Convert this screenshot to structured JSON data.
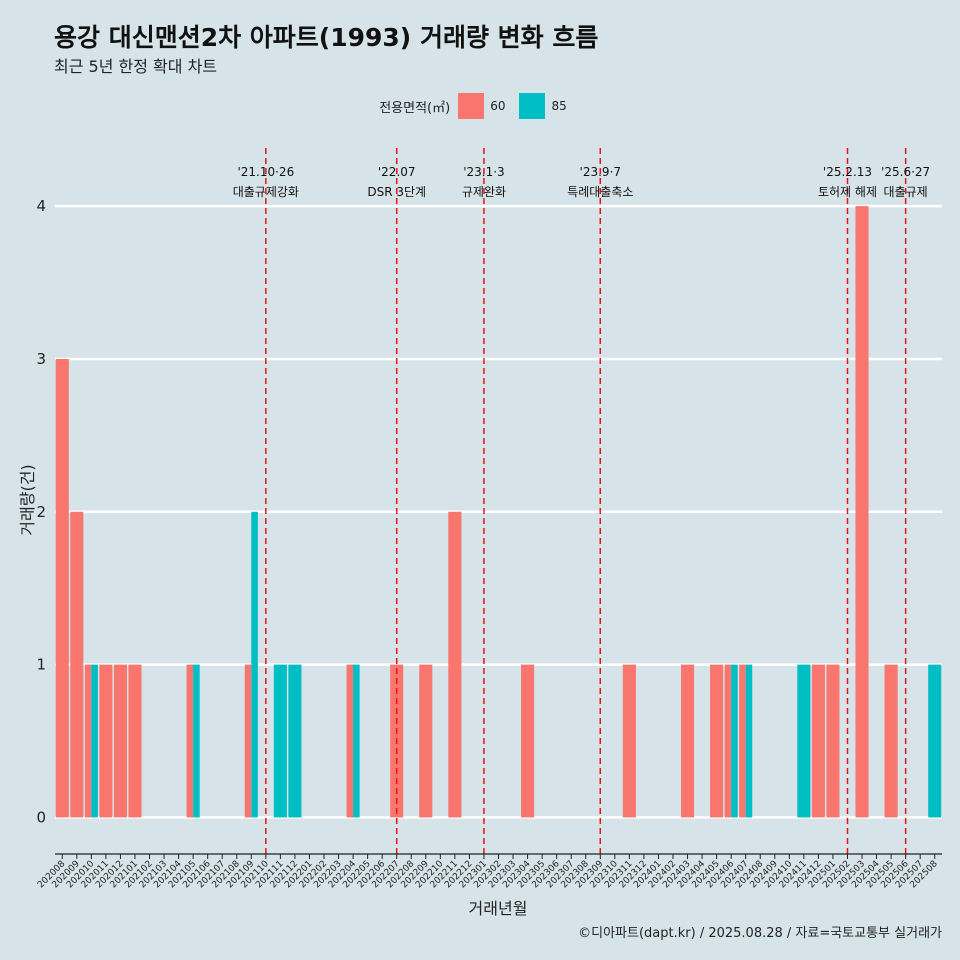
{
  "title": "용강 대신맨션2차 아파트(1993) 거래량 변화 흐름",
  "subtitle": "최근 5년 한정 확대 차트",
  "caption": "©디아파트(dapt.kr) / 2025.08.28 / 자료=국토교통부 실거래가",
  "legend": {
    "title": "전용면적(㎡)",
    "items": [
      {
        "label": "60",
        "color": "#F8766D"
      },
      {
        "label": "85",
        "color": "#00BFC4"
      }
    ]
  },
  "chart_data": {
    "type": "bar",
    "xlabel": "거래년월",
    "ylabel": "거래량(건)",
    "ylim": [
      -0.2,
      4.4
    ],
    "yticks": [
      0,
      1,
      2,
      3,
      4
    ],
    "grid": true,
    "legend_position": "top",
    "categories": [
      "202008",
      "202009",
      "202010",
      "202011",
      "202012",
      "202101",
      "202102",
      "202103",
      "202104",
      "202105",
      "202106",
      "202107",
      "202108",
      "202109",
      "202110",
      "202111",
      "202112",
      "202201",
      "202202",
      "202203",
      "202204",
      "202205",
      "202206",
      "202207",
      "202208",
      "202209",
      "202210",
      "202211",
      "202212",
      "202301",
      "202302",
      "202303",
      "202304",
      "202305",
      "202306",
      "202307",
      "202308",
      "202309",
      "202310",
      "202311",
      "202312",
      "202401",
      "202402",
      "202403",
      "202404",
      "202405",
      "202406",
      "202407",
      "202408",
      "202409",
      "202410",
      "202411",
      "202412",
      "202501",
      "202502",
      "202503",
      "202504",
      "202505",
      "202506",
      "202507",
      "202508"
    ],
    "series": [
      {
        "name": "60",
        "color": "#F8766D",
        "values": [
          3,
          2,
          1,
          1,
          1,
          1,
          0,
          0,
          0,
          1,
          0,
          0,
          0,
          1,
          0,
          0,
          0,
          0,
          0,
          0,
          1,
          0,
          0,
          1,
          0,
          1,
          0,
          2,
          0,
          0,
          0,
          0,
          1,
          0,
          0,
          0,
          0,
          0,
          0,
          1,
          0,
          0,
          0,
          1,
          0,
          1,
          1,
          1,
          0,
          0,
          0,
          0,
          1,
          1,
          0,
          4,
          0,
          1,
          0,
          0,
          0
        ]
      },
      {
        "name": "85",
        "color": "#00BFC4",
        "values": [
          0,
          0,
          1,
          0,
          0,
          0,
          0,
          0,
          0,
          1,
          0,
          0,
          0,
          2,
          0,
          1,
          1,
          0,
          0,
          0,
          1,
          0,
          0,
          0,
          0,
          0,
          0,
          0,
          0,
          0,
          0,
          0,
          0,
          0,
          0,
          0,
          0,
          0,
          0,
          0,
          0,
          0,
          0,
          0,
          0,
          0,
          1,
          1,
          0,
          0,
          0,
          1,
          0,
          0,
          0,
          0,
          0,
          0,
          0,
          0,
          1
        ]
      }
    ],
    "annotations": [
      {
        "at": "202110",
        "line1": "'21.10·26",
        "line2": "대출규제강화"
      },
      {
        "at": "202207",
        "line1": "'22.07",
        "line2": "DSR 3단계"
      },
      {
        "at": "202301",
        "line1": "'23.1·3",
        "line2": "규제완화"
      },
      {
        "at": "202309",
        "line1": "'23.9·7",
        "line2": "특례대출축소"
      },
      {
        "at": "202502",
        "line1": "'25.2.13",
        "line2": "토허제 해제"
      },
      {
        "at": "202506",
        "line1": "'25.6·27",
        "line2": "대출규제"
      }
    ]
  }
}
